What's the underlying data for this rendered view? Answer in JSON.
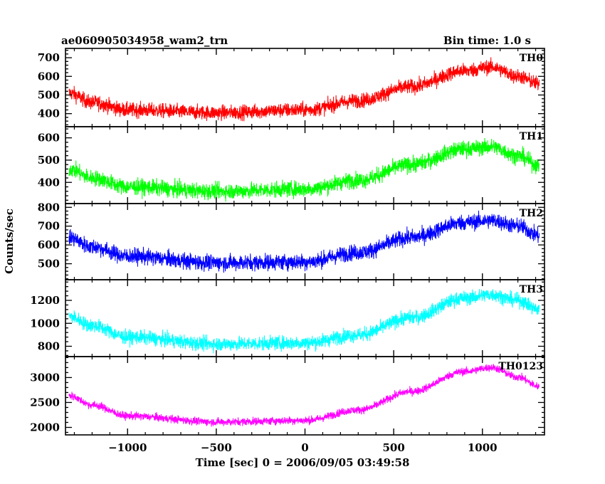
{
  "chart_data": {
    "type": "line",
    "title": "ae060905034958_wam2_trn",
    "bin_time_label": "Bin time: 1.0 s",
    "xlabel": "Time [sec] 0 = 2006/09/05 03:49:58",
    "ylabel": "Counts/sec",
    "xlim": [
      -1350,
      1350
    ],
    "x_range": [
      -1330,
      1320
    ],
    "x_ticks": [
      -1000,
      -500,
      0,
      500,
      1000
    ],
    "x_tick_labels": [
      "−1000",
      "−500",
      "0",
      "500",
      "1000"
    ],
    "grid": false,
    "panels": [
      {
        "name": "TH0",
        "color": "#ff0000",
        "ylim": [
          330,
          750
        ],
        "y_ticks": [
          400,
          500,
          600,
          700
        ],
        "y_tick_labels": [
          "400",
          "500",
          "600",
          "700"
        ],
        "noise": 35,
        "trend": [
          [
            -1330,
            510
          ],
          [
            -1200,
            460
          ],
          [
            -1000,
            420
          ],
          [
            -500,
            405
          ],
          [
            0,
            420
          ],
          [
            300,
            470
          ],
          [
            600,
            545
          ],
          [
            900,
            630
          ],
          [
            1050,
            650
          ],
          [
            1200,
            600
          ],
          [
            1320,
            560
          ]
        ]
      },
      {
        "name": "TH1",
        "color": "#00ff00",
        "ylim": [
          305,
          650
        ],
        "y_ticks": [
          400,
          500,
          600
        ],
        "y_tick_labels": [
          "400",
          "500",
          "600"
        ],
        "noise": 32,
        "trend": [
          [
            -1330,
            460
          ],
          [
            -1200,
            420
          ],
          [
            -1000,
            380
          ],
          [
            -500,
            360
          ],
          [
            0,
            370
          ],
          [
            300,
            410
          ],
          [
            600,
            480
          ],
          [
            900,
            550
          ],
          [
            1050,
            560
          ],
          [
            1200,
            520
          ],
          [
            1320,
            475
          ]
        ]
      },
      {
        "name": "TH2",
        "color": "#0000ff",
        "ylim": [
          415,
          820
        ],
        "y_ticks": [
          500,
          600,
          700,
          800
        ],
        "y_tick_labels": [
          "500",
          "600",
          "700",
          "800"
        ],
        "noise": 38,
        "trend": [
          [
            -1330,
            640
          ],
          [
            -1200,
            590
          ],
          [
            -1000,
            540
          ],
          [
            -500,
            505
          ],
          [
            0,
            510
          ],
          [
            300,
            560
          ],
          [
            600,
            640
          ],
          [
            900,
            720
          ],
          [
            1050,
            730
          ],
          [
            1200,
            700
          ],
          [
            1320,
            650
          ]
        ]
      },
      {
        "name": "TH3",
        "color": "#00ffff",
        "ylim": [
          710,
          1380
        ],
        "y_ticks": [
          800,
          1000,
          1200
        ],
        "y_tick_labels": [
          "800",
          "1000",
          "1200"
        ],
        "noise": 55,
        "trend": [
          [
            -1330,
            1060
          ],
          [
            -1200,
            980
          ],
          [
            -1000,
            880
          ],
          [
            -500,
            820
          ],
          [
            0,
            830
          ],
          [
            300,
            900
          ],
          [
            600,
            1050
          ],
          [
            900,
            1220
          ],
          [
            1050,
            1250
          ],
          [
            1200,
            1200
          ],
          [
            1320,
            1120
          ]
        ]
      },
      {
        "name": "TH0123",
        "color": "#ff00ff",
        "ylim": [
          1850,
          3420
        ],
        "y_ticks": [
          2000,
          2500,
          3000
        ],
        "y_tick_labels": [
          "2000",
          "2500",
          "3000"
        ],
        "noise": 70,
        "trend": [
          [
            -1330,
            2640
          ],
          [
            -1200,
            2450
          ],
          [
            -1000,
            2230
          ],
          [
            -500,
            2110
          ],
          [
            0,
            2140
          ],
          [
            300,
            2350
          ],
          [
            600,
            2720
          ],
          [
            900,
            3120
          ],
          [
            1050,
            3200
          ],
          [
            1200,
            3010
          ],
          [
            1320,
            2820
          ]
        ]
      }
    ]
  }
}
